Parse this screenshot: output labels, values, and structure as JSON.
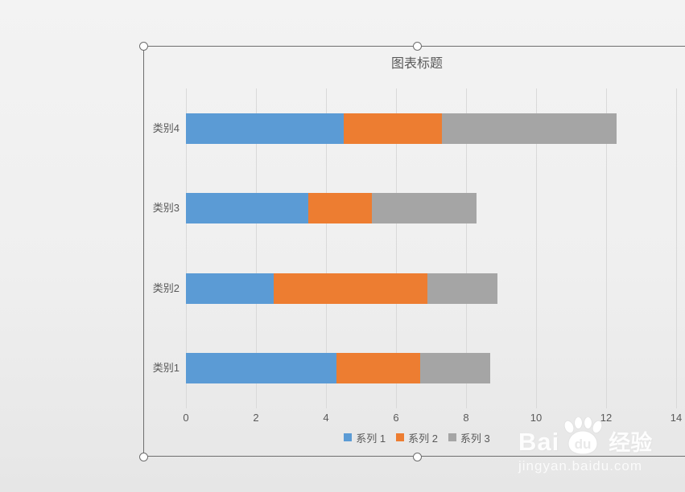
{
  "chart_data": {
    "type": "bar",
    "orientation": "horizontal",
    "stacked": true,
    "title": "图表标题",
    "categories": [
      "类别4",
      "类别3",
      "类别2",
      "类别1"
    ],
    "series": [
      {
        "name": "系列 1",
        "color": "#5B9BD5",
        "values": [
          4.5,
          3.5,
          2.5,
          4.3
        ]
      },
      {
        "name": "系列 2",
        "color": "#ED7D31",
        "values": [
          2.8,
          1.8,
          4.4,
          2.4
        ]
      },
      {
        "name": "系列 3",
        "color": "#A5A5A5",
        "values": [
          5.0,
          3.0,
          2.0,
          2.0
        ]
      }
    ],
    "xlim": [
      0,
      14
    ],
    "xticks": [
      0,
      2,
      4,
      6,
      8,
      10,
      12,
      14
    ],
    "grid": true,
    "legend_position": "bottom",
    "axis_text_color": "#595959",
    "gridline_color": "#D9D9D9"
  },
  "watermark": {
    "bai": "Bai",
    "du": "du",
    "jingyan": "经验",
    "url": "jingyan.baidu.com"
  }
}
